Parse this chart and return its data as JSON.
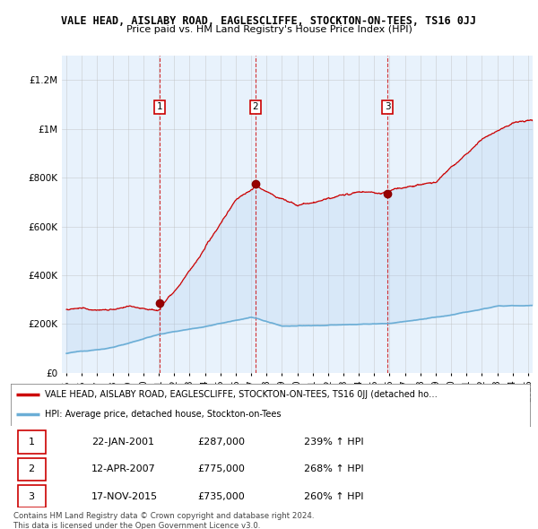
{
  "title": "VALE HEAD, AISLABY ROAD, EAGLESCLIFFE, STOCKTON-ON-TEES, TS16 0JJ",
  "subtitle": "Price paid vs. HM Land Registry's House Price Index (HPI)",
  "ylim": [
    0,
    1300000
  ],
  "yticks": [
    0,
    200000,
    400000,
    600000,
    800000,
    1000000,
    1200000
  ],
  "ytick_labels": [
    "£0",
    "£200K",
    "£400K",
    "£600K",
    "£800K",
    "£1M",
    "£1.2M"
  ],
  "sale_dates_num": [
    2001.06,
    2007.28,
    2015.88
  ],
  "sale_prices": [
    287000,
    775000,
    735000
  ],
  "sale_labels": [
    "1",
    "2",
    "3"
  ],
  "hpi_line_color": "#6baed6",
  "price_line_color": "#cc0000",
  "dashed_line_color": "#cc0000",
  "fill_color": "#d6e8f7",
  "background_color": "#ffffff",
  "chart_bg_color": "#e8f2fc",
  "grid_color": "#bbbbbb",
  "legend_entries": [
    "VALE HEAD, AISLABY ROAD, EAGLESCLIFFE, STOCKTON-ON-TEES, TS16 0JJ (detached ho…",
    "HPI: Average price, detached house, Stockton-on-Tees"
  ],
  "table_rows": [
    [
      "1",
      "22-JAN-2001",
      "£287,000",
      "239% ↑ HPI"
    ],
    [
      "2",
      "12-APR-2007",
      "£775,000",
      "268% ↑ HPI"
    ],
    [
      "3",
      "17-NOV-2015",
      "£735,000",
      "260% ↑ HPI"
    ]
  ],
  "footer": "Contains HM Land Registry data © Crown copyright and database right 2024.\nThis data is licensed under the Open Government Licence v3.0.",
  "xstart": 1994.7,
  "xend": 2025.3
}
